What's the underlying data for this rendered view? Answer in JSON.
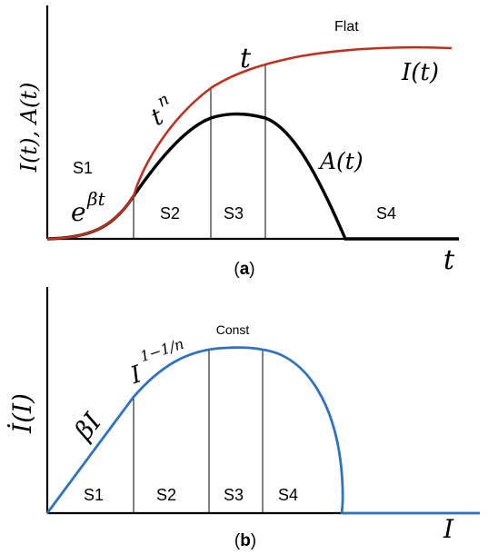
{
  "colors": {
    "I_curve": "#c0301e",
    "A_curve": "#000000",
    "Idot_curve": "#2f72c0"
  },
  "panel_a": {
    "caption_open": "(",
    "caption_letter": "a",
    "caption_close": ")",
    "y_axis_label": "I(t), A(t)",
    "x_axis_label": "t",
    "curve_I_label": "I(t)",
    "curve_A_label": "A(t)",
    "growth_exp_base": "e",
    "growth_exp_power": "βt",
    "power_base": "t",
    "power_exp": "n",
    "linear_label": "t",
    "flat_label": "Flat",
    "stages": [
      "S1",
      "S2",
      "S3",
      "S4"
    ]
  },
  "panel_b": {
    "caption_open": "(",
    "caption_letter": "b",
    "caption_close": ")",
    "y_axis_label": "İ(I)",
    "x_axis_label": "I",
    "linear_label": "βI",
    "power_base": "I",
    "power_exp": "1−1/n",
    "const_label": "Const",
    "stages": [
      "S1",
      "S2",
      "S3",
      "S4"
    ]
  }
}
